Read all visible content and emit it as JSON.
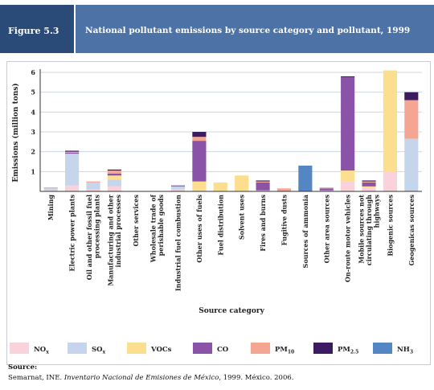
{
  "header": {
    "figure_label": "Figure 5.3",
    "title": "National pollutant emissions by source category and pollutant, 1999"
  },
  "colors": {
    "figure_box": "#2a4a78",
    "title_box": "#4d73a6",
    "grid": "#cfd6e0"
  },
  "chart_data": {
    "type": "bar",
    "stacked": true,
    "ylabel": "Emissions (million tons)",
    "xlabel": "Source category",
    "ylim": [
      0,
      6
    ],
    "yticks": [
      1,
      2,
      3,
      4,
      5,
      6
    ],
    "grid": true,
    "legend_position": "bottom",
    "categories": [
      "Mining",
      "Electric power plants",
      "Oil and other fossil fuel processing plants",
      "Manufacturing and other industrial processes",
      "Other services",
      "Wholesale trade of perishable goods",
      "Industrial fuel combustion",
      "Other uses of fuels",
      "Fuel distribution",
      "Solvent uses",
      "Fires and burns",
      "Fugitive dusts",
      "Sources of ammonia",
      "Other area sources",
      "On-route motor vehicles",
      "Mobile sources not circulating through highways",
      "Biogenic sources",
      "Geogenicas sources"
    ],
    "tick_label_lines": [
      [
        "Mining"
      ],
      [
        "Electric power plants"
      ],
      [
        "Oil and other fossil fuel",
        "processing plants"
      ],
      [
        "Manufacturing and other",
        "industrial processes"
      ],
      [
        "Other services"
      ],
      [
        "Wholesale trade of",
        "perishable goods"
      ],
      [
        "Industrial fuel combustion"
      ],
      [
        "Other uses of fuels"
      ],
      [
        "Fuel distribution"
      ],
      [
        "Solvent uses"
      ],
      [
        "Fires and burns"
      ],
      [
        "Fugitive dusts"
      ],
      [
        "Sources of ammonia"
      ],
      [
        "Other area sources"
      ],
      [
        "On-route motor vehicles"
      ],
      [
        "Mobile sources not",
        "circulating through",
        "highways"
      ],
      [
        "Biogenic sources"
      ],
      [
        "Geogenicas sources"
      ]
    ],
    "series": [
      {
        "name": "NOx",
        "label_main": "NO",
        "label_sub": "x",
        "color": "#f9d2dc",
        "values": [
          0.05,
          0.3,
          0.1,
          0.25,
          0.0,
          0.0,
          0.1,
          0.05,
          0.0,
          0.0,
          0.0,
          0.0,
          0.0,
          0.0,
          0.5,
          0.2,
          1.0,
          0.0
        ]
      },
      {
        "name": "SOx",
        "label_main": "SO",
        "label_sub": "x",
        "color": "#c5d6ec",
        "values": [
          0.1,
          1.6,
          0.35,
          0.35,
          0.0,
          0.0,
          0.15,
          0.0,
          0.0,
          0.0,
          0.0,
          0.0,
          0.0,
          0.05,
          0.0,
          0.0,
          0.0,
          2.65
        ]
      },
      {
        "name": "VOCs",
        "label_main": "VOCs",
        "label_sub": "",
        "color": "#fbdf8e",
        "values": [
          0.0,
          0.0,
          0.0,
          0.2,
          0.0,
          0.0,
          0.0,
          0.45,
          0.45,
          0.8,
          0.05,
          0.0,
          0.0,
          0.0,
          0.55,
          0.05,
          5.1,
          0.0
        ]
      },
      {
        "name": "CO",
        "label_main": "CO",
        "label_sub": "",
        "color": "#8a53a8",
        "values": [
          0.0,
          0.05,
          0.0,
          0.1,
          0.0,
          0.0,
          0.05,
          2.05,
          0.0,
          0.0,
          0.4,
          0.0,
          0.0,
          0.1,
          4.7,
          0.2,
          0.0,
          0.0
        ]
      },
      {
        "name": "PM10",
        "label_main": "PM",
        "label_sub": "10",
        "color": "#f5a693",
        "values": [
          0.05,
          0.05,
          0.05,
          0.15,
          0.0,
          0.0,
          0.0,
          0.2,
          0.0,
          0.0,
          0.05,
          0.15,
          0.0,
          0.05,
          0.0,
          0.05,
          0.0,
          1.95
        ]
      },
      {
        "name": "PM2.5",
        "label_main": "PM",
        "label_sub": "2.5",
        "color": "#3b1c61",
        "values": [
          0.0,
          0.05,
          0.0,
          0.05,
          0.0,
          0.0,
          0.0,
          0.25,
          0.0,
          0.0,
          0.05,
          0.0,
          0.0,
          0.0,
          0.05,
          0.05,
          0.0,
          0.4
        ]
      },
      {
        "name": "NH3",
        "label_main": "NH",
        "label_sub": "3",
        "color": "#5486c4",
        "values": [
          0.0,
          0.0,
          0.0,
          0.0,
          0.0,
          0.0,
          0.0,
          0.0,
          0.0,
          0.0,
          0.0,
          0.0,
          1.3,
          0.0,
          0.0,
          0.0,
          0.0,
          0.0
        ]
      }
    ]
  },
  "source": {
    "label": "Source:",
    "text_pre": "Semarnat, INE. ",
    "text_italic": "Inventario Nacional de Emisiones de México",
    "text_post": ", 1999. México. 2006."
  }
}
